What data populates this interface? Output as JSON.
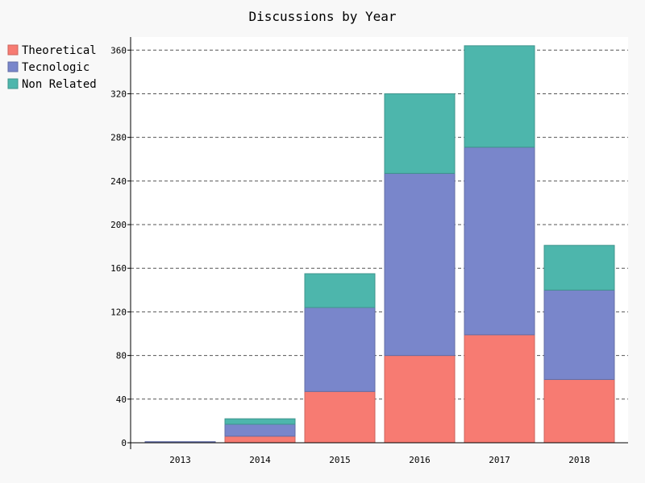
{
  "chart_data": {
    "type": "bar",
    "stacked": true,
    "title": "Discussions by Year",
    "categories": [
      "2013",
      "2014",
      "2015",
      "2016",
      "2017",
      "2018"
    ],
    "series": [
      {
        "name": "Theoretical",
        "color": "#f77b72",
        "values": [
          0,
          6,
          47,
          80,
          99,
          58
        ]
      },
      {
        "name": "Tecnologic",
        "color": "#7986cb",
        "values": [
          1,
          11,
          77,
          167,
          172,
          82
        ]
      },
      {
        "name": "Non Related",
        "color": "#4db6ac",
        "values": [
          0,
          5,
          31,
          73,
          93,
          41
        ]
      }
    ],
    "y_ticks": [
      0,
      40,
      80,
      120,
      160,
      200,
      240,
      280,
      320,
      360
    ],
    "ylim": [
      0,
      372
    ],
    "grid": "horizontal dashed",
    "legend_position": "top-left",
    "xlabel": "",
    "ylabel": ""
  },
  "colors": {
    "background": "#f8f8f8",
    "plot_background": "#ffffff",
    "grid": "#555555",
    "axis": "#000000"
  }
}
